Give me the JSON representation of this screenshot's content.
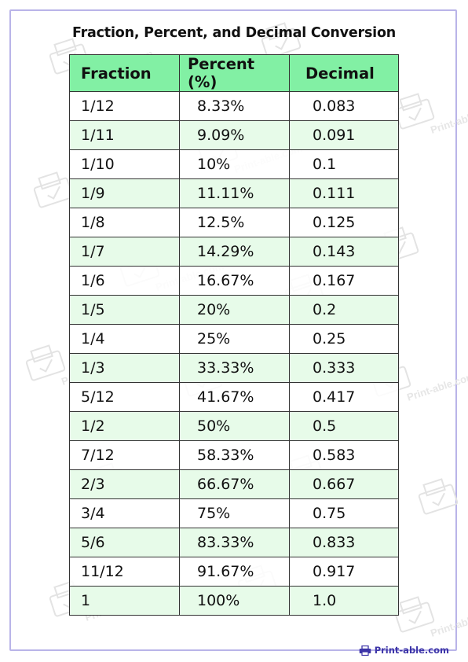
{
  "title": "Fraction, Percent, and Decimal Conversion",
  "headers": {
    "fraction": "Fraction",
    "percent": "Percent (%)",
    "decimal": "Decimal"
  },
  "rows": [
    {
      "fraction": "1/12",
      "percent": "8.33%",
      "decimal": "0.083"
    },
    {
      "fraction": "1/11",
      "percent": "9.09%",
      "decimal": "0.091"
    },
    {
      "fraction": "1/10",
      "percent": "10%",
      "decimal": "0.1"
    },
    {
      "fraction": "1/9",
      "percent": "11.11%",
      "decimal": "0.111"
    },
    {
      "fraction": "1/8",
      "percent": "12.5%",
      "decimal": "0.125"
    },
    {
      "fraction": "1/7",
      "percent": "14.29%",
      "decimal": "0.143"
    },
    {
      "fraction": "1/6",
      "percent": "16.67%",
      "decimal": "0.167"
    },
    {
      "fraction": "1/5",
      "percent": "20%",
      "decimal": "0.2"
    },
    {
      "fraction": "1/4",
      "percent": "25%",
      "decimal": "0.25"
    },
    {
      "fraction": "1/3",
      "percent": "33.33%",
      "decimal": "0.333"
    },
    {
      "fraction": "5/12",
      "percent": "41.67%",
      "decimal": "0.417"
    },
    {
      "fraction": "1/2",
      "percent": "50%",
      "decimal": "0.5"
    },
    {
      "fraction": "7/12",
      "percent": "58.33%",
      "decimal": "0.583"
    },
    {
      "fraction": "2/3",
      "percent": "66.67%",
      "decimal": "0.667"
    },
    {
      "fraction": "3/4",
      "percent": "75%",
      "decimal": "0.75"
    },
    {
      "fraction": "5/6",
      "percent": "83.33%",
      "decimal": "0.833"
    },
    {
      "fraction": "11/12",
      "percent": "91.67%",
      "decimal": "0.917"
    },
    {
      "fraction": "1",
      "percent": "100%",
      "decimal": "1.0"
    }
  ],
  "watermark_text": "Print-able.com",
  "brand": {
    "text": "Print-able.com",
    "icon": "printer-icon"
  },
  "colors": {
    "header_bg": "#82f0a4",
    "stripe_bg": "#e7fbe9",
    "frame_border": "#b9b4e8",
    "brand": "#3c34a8"
  }
}
